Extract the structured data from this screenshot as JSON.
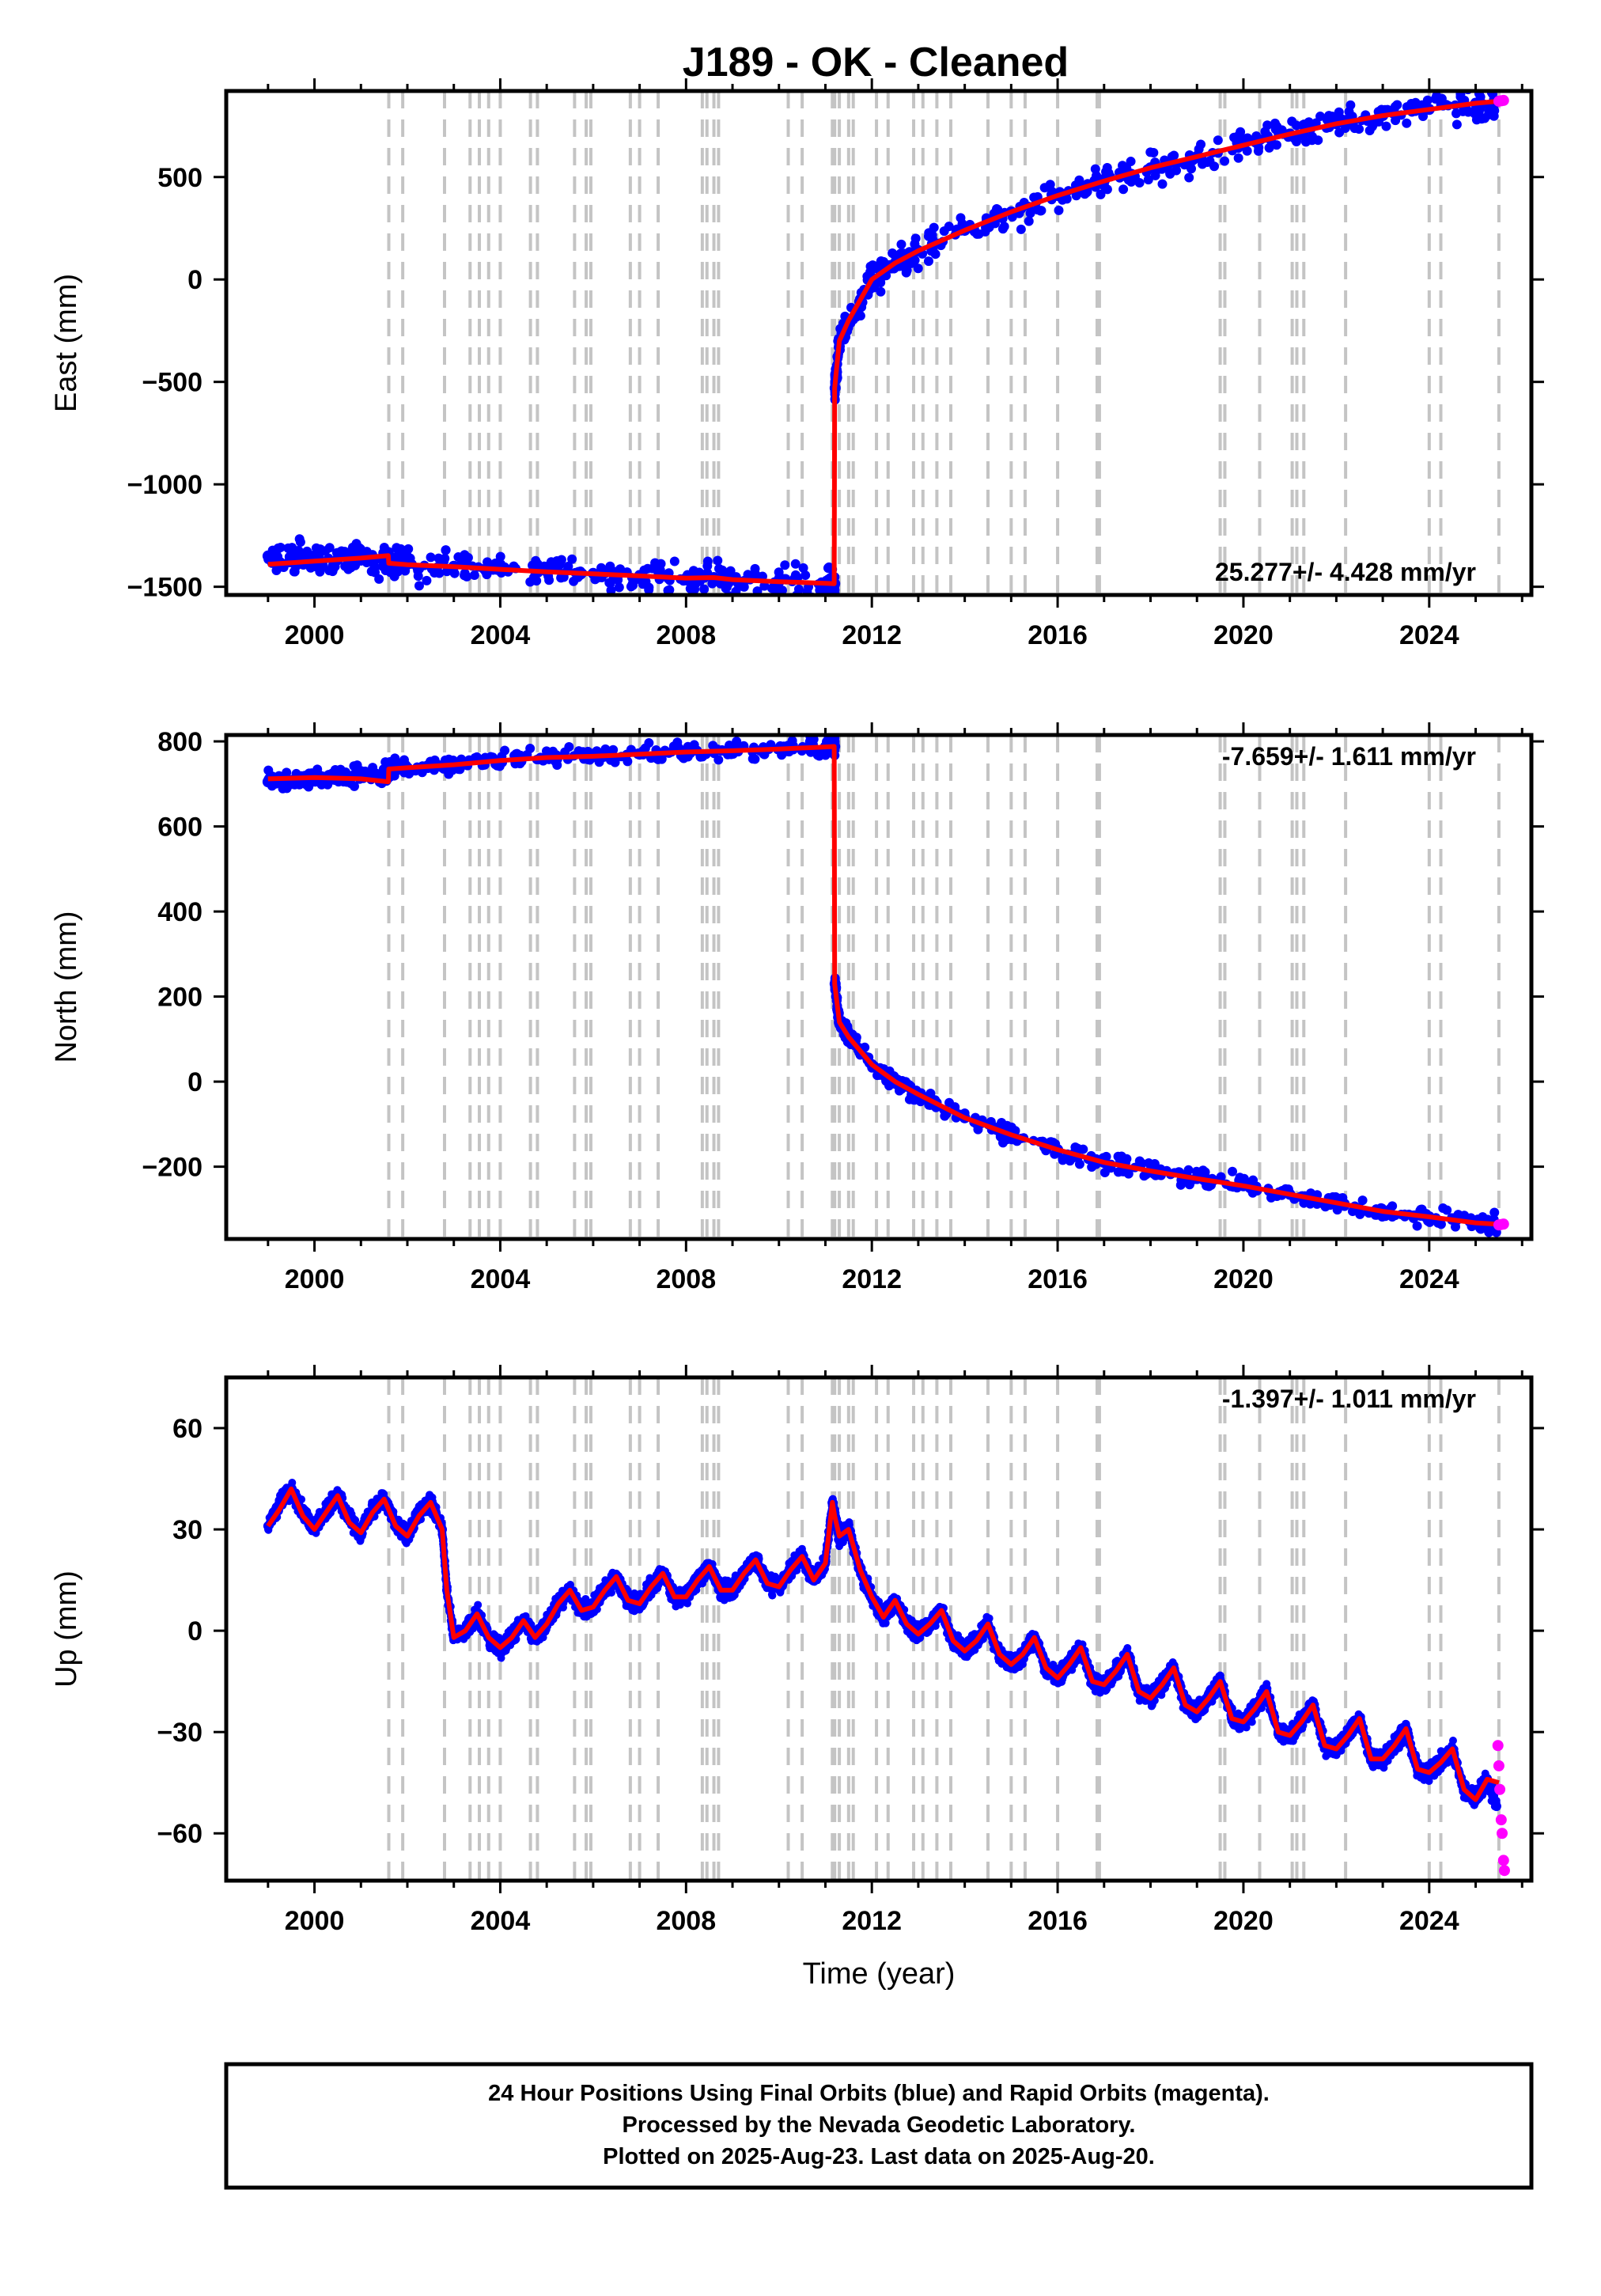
{
  "title": "J189  - OK - Cleaned",
  "footer": {
    "line1": "24 Hour Positions Using Final Orbits (blue) and Rapid Orbits (magenta).",
    "line2": "Processed by the Nevada Geodetic Laboratory.",
    "line3": "Plotted on 2025-Aug-23. Last data on 2025-Aug-20."
  },
  "colors": {
    "final_orbits": "#0000ff",
    "rapid_orbits": "#ff00ff",
    "model": "#ff0000",
    "event_lines": "#c4c4c4"
  },
  "chart_data": [
    {
      "type": "scatter",
      "component": "east",
      "ylabel": "East (mm)",
      "xlabel": "",
      "xlim": [
        1998.1,
        2026.2
      ],
      "ylim": [
        -1540,
        920
      ],
      "x_ticks": [
        2000,
        2004,
        2008,
        2012,
        2016,
        2020,
        2024
      ],
      "y_ticks": [
        -1500,
        -1000,
        -500,
        0,
        500
      ],
      "y_tick_labels": [
        "−1500",
        "−1000",
        "−500",
        "0",
        "500"
      ],
      "rate_label": "25.277+/- 4.428 mm/yr",
      "rate_position": "bottom-right",
      "event_lines": [
        2001.6,
        2001.9,
        2002.8,
        2003.35,
        2003.55,
        2003.75,
        2004.0,
        2004.65,
        2004.8,
        2005.6,
        2005.85,
        2005.95,
        2006.8,
        2007.0,
        2007.4,
        2008.35,
        2008.45,
        2008.6,
        2008.7,
        2010.2,
        2010.5,
        2011.15,
        2011.2,
        2011.3,
        2011.5,
        2011.6,
        2012.1,
        2012.35,
        2012.9,
        2013.1,
        2013.4,
        2013.7,
        2014.5,
        2015.0,
        2015.3,
        2016.0,
        2016.85,
        2016.9,
        2019.5,
        2019.6,
        2020.35,
        2021.05,
        2021.15,
        2021.3,
        2022.2,
        2024.0,
        2024.25,
        2025.5
      ],
      "series": [
        {
          "name": "Final Orbits",
          "x": [
            1999.0,
            1999.5,
            2000.0,
            2000.5,
            2001.0,
            2001.55,
            2001.65,
            2002.0,
            2003.0,
            2004.0,
            2005.0,
            2006.0,
            2007.0,
            2008.0,
            2008.6,
            2009.0,
            2010.0,
            2011.0,
            2011.2,
            2011.21,
            2011.3,
            2011.5,
            2012.0,
            2012.5,
            2013.0,
            2014.0,
            2015.0,
            2016.0,
            2017.0,
            2018.0,
            2019.0,
            2020.0,
            2021.0,
            2022.0,
            2023.0,
            2024.0,
            2025.0,
            2025.45
          ],
          "y": [
            -1350,
            -1355,
            -1360,
            -1365,
            -1370,
            -1375,
            -1385,
            -1390,
            -1400,
            -1415,
            -1425,
            -1435,
            -1445,
            -1458,
            -1455,
            -1465,
            -1475,
            -1482,
            -1485,
            -530,
            -300,
            -200,
            0,
            80,
            140,
            240,
            330,
            410,
            480,
            545,
            600,
            655,
            710,
            760,
            800,
            830,
            860,
            870
          ]
        },
        {
          "name": "Rapid Orbits",
          "x": [
            2025.5,
            2025.55,
            2025.6
          ],
          "y": [
            870,
            872,
            874
          ]
        },
        {
          "name": "Model",
          "x": [
            1999.0,
            2000.0,
            2001.0,
            2001.59,
            2001.6,
            2002.0,
            2003.0,
            2004.0,
            2005.0,
            2006.0,
            2007.0,
            2008.0,
            2008.6,
            2009.0,
            2010.0,
            2011.0,
            2011.19,
            2011.2,
            2011.3,
            2011.5,
            2012.0,
            2012.5,
            2013.0,
            2014.0,
            2015.0,
            2016.0,
            2017.0,
            2018.0,
            2019.0,
            2020.0,
            2021.0,
            2022.0,
            2023.0,
            2024.0,
            2025.0,
            2025.6
          ],
          "y": [
            -1390,
            -1375,
            -1360,
            -1348,
            -1385,
            -1392,
            -1402,
            -1415,
            -1427,
            -1437,
            -1447,
            -1458,
            -1455,
            -1465,
            -1475,
            -1483,
            -1485,
            -530,
            -300,
            -200,
            0,
            80,
            140,
            240,
            330,
            410,
            480,
            545,
            600,
            655,
            710,
            760,
            800,
            830,
            860,
            872
          ]
        }
      ]
    },
    {
      "type": "scatter",
      "component": "north",
      "ylabel": "North (mm)",
      "xlabel": "",
      "xlim": [
        1998.1,
        2026.2
      ],
      "ylim": [
        -370,
        815
      ],
      "x_ticks": [
        2000,
        2004,
        2008,
        2012,
        2016,
        2020,
        2024
      ],
      "y_ticks": [
        -200,
        0,
        200,
        400,
        600,
        800
      ],
      "y_tick_labels": [
        "−200",
        "0",
        "200",
        "400",
        "600",
        "800"
      ],
      "rate_label": "-7.659+/- 1.611 mm/yr",
      "rate_position": "top-right",
      "event_lines": [
        2001.6,
        2001.9,
        2002.8,
        2003.35,
        2003.55,
        2003.75,
        2004.0,
        2004.65,
        2004.8,
        2005.6,
        2005.85,
        2005.95,
        2006.8,
        2007.0,
        2007.4,
        2008.35,
        2008.45,
        2008.6,
        2008.7,
        2010.2,
        2010.5,
        2011.15,
        2011.2,
        2011.3,
        2011.5,
        2011.6,
        2012.1,
        2012.35,
        2012.9,
        2013.1,
        2013.4,
        2013.7,
        2014.5,
        2015.0,
        2015.3,
        2016.0,
        2016.85,
        2016.9,
        2019.5,
        2019.6,
        2020.35,
        2021.05,
        2021.15,
        2021.3,
        2022.2,
        2024.0,
        2024.25,
        2025.5
      ],
      "series": [
        {
          "name": "Final Orbits",
          "x": [
            1999.0,
            1999.5,
            2000.0,
            2000.5,
            2001.0,
            2001.55,
            2001.65,
            2002.0,
            2003.0,
            2004.0,
            2005.0,
            2006.0,
            2007.0,
            2008.0,
            2009.0,
            2010.0,
            2011.0,
            2011.2,
            2011.21,
            2011.3,
            2011.5,
            2012.0,
            2012.5,
            2013.0,
            2014.0,
            2015.0,
            2016.0,
            2017.0,
            2018.0,
            2019.0,
            2020.0,
            2021.0,
            2022.0,
            2023.0,
            2024.0,
            2025.0,
            2025.45
          ],
          "y": [
            705,
            708,
            712,
            716,
            720,
            722,
            735,
            738,
            745,
            755,
            762,
            765,
            770,
            775,
            778,
            782,
            787,
            788,
            230,
            140,
            105,
            40,
            0,
            -30,
            -85,
            -125,
            -160,
            -190,
            -210,
            -228,
            -245,
            -265,
            -285,
            -305,
            -318,
            -332,
            -338
          ]
        },
        {
          "name": "Rapid Orbits",
          "x": [
            2025.5,
            2025.55,
            2025.6
          ],
          "y": [
            -337,
            -336,
            -335
          ]
        },
        {
          "name": "Model",
          "x": [
            1999.0,
            2000.0,
            2001.0,
            2001.59,
            2001.6,
            2002.0,
            2003.0,
            2004.0,
            2005.0,
            2006.0,
            2007.0,
            2008.0,
            2009.0,
            2010.0,
            2011.0,
            2011.19,
            2011.2,
            2011.3,
            2011.5,
            2012.0,
            2012.5,
            2013.0,
            2014.0,
            2015.0,
            2016.0,
            2017.0,
            2018.0,
            2019.0,
            2020.0,
            2021.0,
            2022.0,
            2023.0,
            2024.0,
            2025.0,
            2025.6
          ],
          "y": [
            712,
            715,
            712,
            705,
            735,
            738,
            745,
            755,
            762,
            765,
            770,
            775,
            778,
            782,
            787,
            788,
            230,
            140,
            105,
            40,
            0,
            -30,
            -85,
            -125,
            -160,
            -190,
            -210,
            -228,
            -245,
            -265,
            -285,
            -305,
            -318,
            -332,
            -336
          ]
        }
      ]
    },
    {
      "type": "scatter",
      "component": "up",
      "ylabel": "Up (mm)",
      "xlabel": "Time (year)",
      "xlim": [
        1998.1,
        2026.2
      ],
      "ylim": [
        -74,
        75
      ],
      "x_ticks": [
        2000,
        2004,
        2008,
        2012,
        2016,
        2020,
        2024
      ],
      "y_ticks": [
        -60,
        -30,
        0,
        30,
        60
      ],
      "y_tick_labels": [
        "−60",
        "−30",
        "0",
        "30",
        "60"
      ],
      "rate_label": "-1.397+/- 1.011 mm/yr",
      "rate_position": "top-right",
      "event_lines": [
        2001.6,
        2001.9,
        2002.8,
        2003.35,
        2003.55,
        2003.75,
        2004.0,
        2004.65,
        2004.8,
        2005.6,
        2005.85,
        2005.95,
        2006.8,
        2007.0,
        2007.4,
        2008.35,
        2008.45,
        2008.6,
        2008.7,
        2010.2,
        2010.5,
        2011.15,
        2011.2,
        2011.3,
        2011.5,
        2011.6,
        2012.1,
        2012.35,
        2012.9,
        2013.1,
        2013.4,
        2013.7,
        2014.5,
        2015.0,
        2015.3,
        2016.0,
        2016.85,
        2016.9,
        2019.5,
        2019.6,
        2020.35,
        2021.05,
        2021.15,
        2021.3,
        2022.2,
        2024.0,
        2024.25,
        2025.5
      ],
      "series": [
        {
          "name": "Final Orbits",
          "x": [
            1999.0,
            1999.25,
            1999.5,
            1999.75,
            2000.0,
            2000.25,
            2000.5,
            2000.75,
            2001.0,
            2001.25,
            2001.5,
            2001.75,
            2002.0,
            2002.25,
            2002.5,
            2002.75,
            2002.85,
            2003.0,
            2003.25,
            2003.5,
            2003.75,
            2004.0,
            2004.25,
            2004.5,
            2004.75,
            2005.0,
            2005.25,
            2005.5,
            2005.75,
            2006.0,
            2006.25,
            2006.5,
            2006.75,
            2007.0,
            2007.25,
            2007.5,
            2007.75,
            2008.0,
            2008.25,
            2008.5,
            2008.75,
            2009.0,
            2009.25,
            2009.5,
            2009.75,
            2010.0,
            2010.25,
            2010.5,
            2010.75,
            2011.0,
            2011.15,
            2011.2,
            2011.3,
            2011.5,
            2011.75,
            2012.0,
            2012.25,
            2012.5,
            2012.75,
            2013.0,
            2013.25,
            2013.5,
            2013.75,
            2014.0,
            2014.25,
            2014.5,
            2014.75,
            2015.0,
            2015.25,
            2015.5,
            2015.75,
            2016.0,
            2016.25,
            2016.5,
            2016.75,
            2017.0,
            2017.25,
            2017.5,
            2017.75,
            2018.0,
            2018.25,
            2018.5,
            2018.75,
            2019.0,
            2019.25,
            2019.5,
            2019.75,
            2020.0,
            2020.25,
            2020.5,
            2020.75,
            2021.0,
            2021.25,
            2021.5,
            2021.75,
            2022.0,
            2022.25,
            2022.5,
            2022.75,
            2023.0,
            2023.25,
            2023.5,
            2023.75,
            2024.0,
            2024.25,
            2024.5,
            2024.75,
            2025.0,
            2025.25,
            2025.45
          ],
          "y": [
            31,
            38,
            42,
            35,
            30,
            36,
            40,
            33,
            29,
            36,
            39,
            32,
            28,
            35,
            38,
            30,
            12,
            -2,
            0,
            5,
            -2,
            -5,
            -2,
            3,
            -2,
            2,
            8,
            12,
            6,
            7,
            12,
            16,
            9,
            8,
            13,
            17,
            10,
            10,
            15,
            19,
            12,
            12,
            17,
            21,
            14,
            13,
            18,
            22,
            15,
            20,
            38,
            34,
            28,
            30,
            18,
            10,
            4,
            9,
            2,
            -1,
            2,
            6,
            -3,
            -6,
            -3,
            2,
            -7,
            -10,
            -7,
            -2,
            -11,
            -14,
            -10,
            -5,
            -15,
            -16,
            -12,
            -7,
            -18,
            -20,
            -16,
            -11,
            -22,
            -24,
            -20,
            -15,
            -26,
            -27,
            -23,
            -18,
            -30,
            -31,
            -27,
            -22,
            -34,
            -35,
            -31,
            -26,
            -38,
            -38,
            -34,
            -29,
            -41,
            -42,
            -39,
            -35,
            -47,
            -50,
            -44,
            -52
          ]
        },
        {
          "name": "Rapid Orbits",
          "x": [
            2025.48,
            2025.5,
            2025.52,
            2025.55,
            2025.57,
            2025.6,
            2025.62
          ],
          "y": [
            -34,
            -40,
            -47,
            -56,
            -60,
            -68,
            -71
          ]
        },
        {
          "name": "Model",
          "x": [
            1999.0,
            1999.25,
            1999.5,
            1999.75,
            2000.0,
            2000.25,
            2000.5,
            2000.75,
            2001.0,
            2001.25,
            2001.5,
            2001.75,
            2002.0,
            2002.25,
            2002.5,
            2002.75,
            2002.85,
            2003.0,
            2003.25,
            2003.5,
            2003.75,
            2004.0,
            2004.25,
            2004.5,
            2004.75,
            2005.0,
            2005.25,
            2005.5,
            2005.75,
            2006.0,
            2006.25,
            2006.5,
            2006.75,
            2007.0,
            2007.25,
            2007.5,
            2007.75,
            2008.0,
            2008.25,
            2008.5,
            2008.75,
            2009.0,
            2009.25,
            2009.5,
            2009.75,
            2010.0,
            2010.25,
            2010.5,
            2010.75,
            2011.0,
            2011.15,
            2011.2,
            2011.3,
            2011.5,
            2011.75,
            2012.0,
            2012.25,
            2012.5,
            2012.75,
            2013.0,
            2013.25,
            2013.5,
            2013.75,
            2014.0,
            2014.25,
            2014.5,
            2014.75,
            2015.0,
            2015.25,
            2015.5,
            2015.75,
            2016.0,
            2016.25,
            2016.5,
            2016.75,
            2017.0,
            2017.25,
            2017.5,
            2017.75,
            2018.0,
            2018.25,
            2018.5,
            2018.75,
            2019.0,
            2019.25,
            2019.5,
            2019.75,
            2020.0,
            2020.25,
            2020.5,
            2020.75,
            2021.0,
            2021.25,
            2021.5,
            2021.75,
            2022.0,
            2022.25,
            2022.5,
            2022.75,
            2023.0,
            2023.25,
            2023.5,
            2023.75,
            2024.0,
            2024.25,
            2024.5,
            2024.75,
            2025.0,
            2025.25,
            2025.5
          ],
          "y": [
            31,
            36,
            42,
            34,
            30,
            35,
            40,
            32,
            29,
            35,
            39,
            31,
            28,
            34,
            38,
            30,
            12,
            -2,
            0,
            5,
            -2,
            -5,
            -2,
            3,
            -2,
            2,
            8,
            12,
            6,
            7,
            12,
            16,
            9,
            8,
            13,
            17,
            10,
            10,
            15,
            19,
            12,
            12,
            17,
            21,
            14,
            13,
            18,
            22,
            15,
            20,
            38,
            34,
            28,
            30,
            18,
            10,
            4,
            9,
            2,
            -1,
            2,
            6,
            -3,
            -6,
            -3,
            2,
            -7,
            -10,
            -7,
            -2,
            -11,
            -14,
            -10,
            -5,
            -15,
            -16,
            -12,
            -7,
            -18,
            -20,
            -16,
            -11,
            -22,
            -24,
            -20,
            -15,
            -26,
            -27,
            -23,
            -18,
            -30,
            -31,
            -27,
            -22,
            -34,
            -35,
            -31,
            -26,
            -38,
            -38,
            -34,
            -29,
            -41,
            -42,
            -39,
            -35,
            -47,
            -50,
            -44,
            -45
          ]
        }
      ]
    }
  ]
}
